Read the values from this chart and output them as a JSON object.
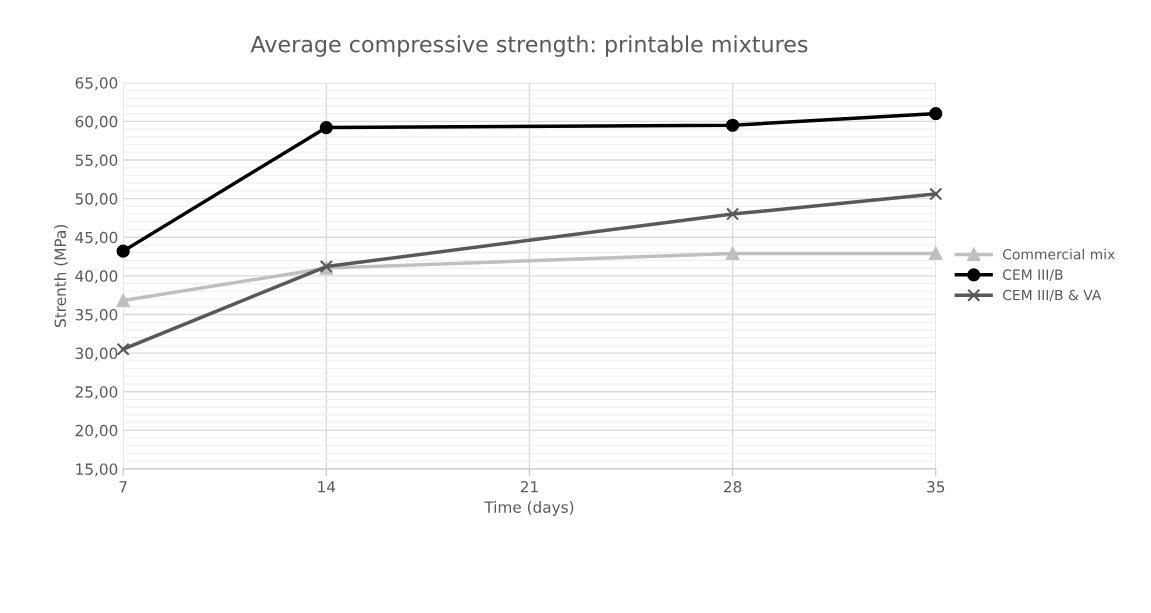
{
  "chart_data": {
    "type": "line",
    "title": "Average compressive strength: printable mixtures",
    "xlabel": "Time (days)",
    "ylabel": "Strenth (MPa)",
    "x": [
      7,
      14,
      28,
      35
    ],
    "series": [
      {
        "name": "Commercial mix",
        "color": "#bfbfbf",
        "marker": "triangle",
        "values": [
          36.8,
          41.0,
          42.9,
          42.9
        ]
      },
      {
        "name": "CEM III/B",
        "color": "#000000",
        "marker": "circle",
        "values": [
          43.2,
          59.2,
          59.5,
          61.0
        ]
      },
      {
        "name": "CEM III/B & VA",
        "color": "#595959",
        "marker": "cross",
        "values": [
          30.5,
          41.2,
          48.0,
          50.6
        ]
      }
    ],
    "xlim": [
      7,
      35
    ],
    "xticks": [
      7,
      14,
      21,
      28,
      35
    ],
    "ylim": [
      15,
      65
    ],
    "yticks": [
      {
        "value": 15,
        "label": "15,00"
      },
      {
        "value": 20,
        "label": "20,00"
      },
      {
        "value": 25,
        "label": "25,00"
      },
      {
        "value": 30,
        "label": "30,00"
      },
      {
        "value": 35,
        "label": "35,00"
      },
      {
        "value": 40,
        "label": "40,00"
      },
      {
        "value": 45,
        "label": "45,00"
      },
      {
        "value": 50,
        "label": "50,00"
      },
      {
        "value": 55,
        "label": "55,00"
      },
      {
        "value": 60,
        "label": "60,00"
      },
      {
        "value": 65,
        "label": "65,00"
      }
    ],
    "grid": true,
    "legend": "right",
    "line_style": "solid"
  }
}
